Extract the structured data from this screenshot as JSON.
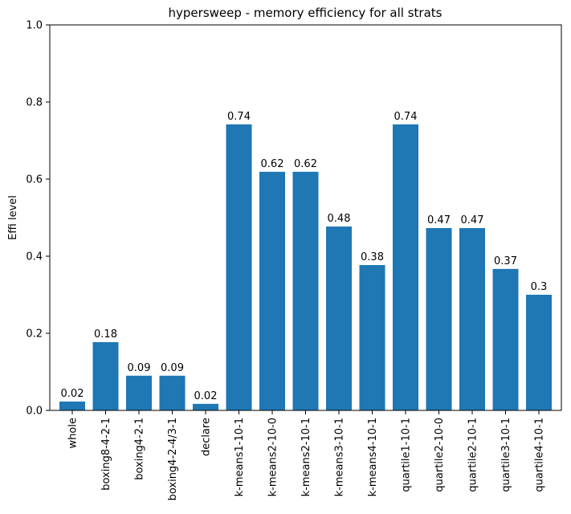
{
  "chart_data": {
    "type": "bar",
    "title": "hypersweep - memory efficiency for all strats",
    "xlabel": "",
    "ylabel": "Effi level",
    "ylim": [
      0,
      1.0
    ],
    "yticks": [
      "0.0",
      "0.2",
      "0.4",
      "0.6",
      "0.8",
      "1.0"
    ],
    "grid": false,
    "bar_color": "#1f77b4",
    "categories": [
      "whole",
      "boxing8-4-2-1",
      "boxing4-2-1",
      "boxing4-2-4/3-1",
      "declare",
      "k-means1-10-1",
      "k-means2-10-0",
      "k-means2-10-1",
      "k-means3-10-1",
      "k-means4-10-1",
      "quartile1-10-1",
      "quartile2-10-0",
      "quartile2-10-1",
      "quartile3-10-1",
      "quartile4-10-1"
    ],
    "values": [
      0.023,
      0.177,
      0.09,
      0.09,
      0.017,
      0.742,
      0.619,
      0.619,
      0.477,
      0.377,
      0.742,
      0.473,
      0.473,
      0.367,
      0.3
    ],
    "data_labels": [
      "0.02",
      "0.18",
      "0.09",
      "0.09",
      "0.02",
      "0.74",
      "0.62",
      "0.62",
      "0.48",
      "0.38",
      "0.74",
      "0.47",
      "0.47",
      "0.37",
      "0.3"
    ]
  }
}
